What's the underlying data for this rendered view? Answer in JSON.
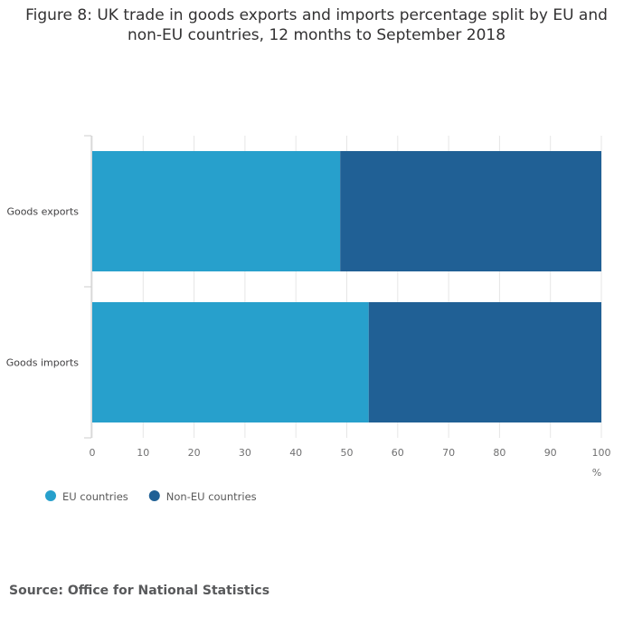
{
  "chart_data": {
    "type": "bar",
    "orientation": "horizontal",
    "stacked": true,
    "title": "Figure 8: UK trade in goods exports and imports percentage split by EU and non-EU countries, 12 months to September 2018",
    "categories": [
      "Goods exports",
      "Goods imports"
    ],
    "series": [
      {
        "name": "EU countries",
        "color": "#27a0cc",
        "values": [
          48.7,
          54.3
        ]
      },
      {
        "name": "Non-EU countries",
        "color": "#206095",
        "values": [
          51.3,
          45.7
        ]
      }
    ],
    "xlim": [
      0,
      100
    ],
    "xticks": [
      0,
      10,
      20,
      30,
      40,
      50,
      60,
      70,
      80,
      90,
      100
    ],
    "xlabel": "%",
    "ylabel": "",
    "grid": true,
    "legend": "bottom-left"
  },
  "source": "Source: Office for National Statistics"
}
